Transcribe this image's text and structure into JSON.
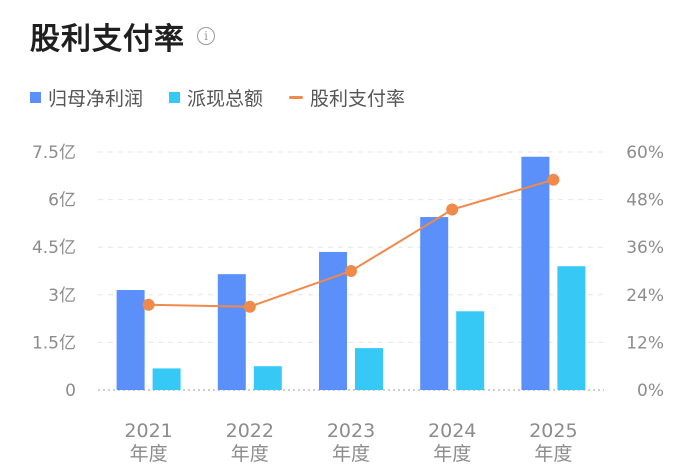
{
  "header": {
    "title": "股利支付率",
    "info_icon": "info-icon"
  },
  "legend": [
    {
      "label": "归母净利润",
      "color": "#5b8ff9",
      "kind": "box"
    },
    {
      "label": "派现总额",
      "color": "#36c9f6",
      "kind": "box"
    },
    {
      "label": "股利支付率",
      "color": "#f08a4b",
      "kind": "line"
    }
  ],
  "chart_data": {
    "type": "bar",
    "categories": [
      {
        "year": "2021",
        "sub": "年度"
      },
      {
        "year": "2022",
        "sub": "年度"
      },
      {
        "year": "2023",
        "sub": "年度"
      },
      {
        "year": "2024",
        "sub": "年度"
      },
      {
        "year": "2025",
        "sub": "年度"
      }
    ],
    "series": [
      {
        "name": "归母净利润",
        "type": "bar",
        "axis": "left",
        "unit": "亿",
        "color": "#5b8ff9",
        "values": [
          3.15,
          3.65,
          4.35,
          5.45,
          7.35
        ]
      },
      {
        "name": "派现总额",
        "type": "bar",
        "axis": "left",
        "unit": "亿",
        "color": "#36c9f6",
        "values": [
          0.68,
          0.75,
          1.32,
          2.48,
          3.9
        ]
      },
      {
        "name": "股利支付率",
        "type": "line",
        "axis": "right",
        "unit": "%",
        "color": "#f08a4b",
        "values": [
          21.5,
          21.0,
          30.0,
          45.5,
          53.0
        ]
      }
    ],
    "y_left": {
      "min": 0,
      "max": 7.5,
      "ticks": [
        0,
        1.5,
        3,
        4.5,
        6,
        7.5
      ],
      "tick_labels": [
        "0",
        "1.5亿",
        "3亿",
        "4.5亿",
        "6亿",
        "7.5亿"
      ]
    },
    "y_right": {
      "min": 0,
      "max": 60,
      "ticks": [
        0,
        12,
        24,
        36,
        48,
        60
      ],
      "tick_labels": [
        "0%",
        "12%",
        "24%",
        "36%",
        "48%",
        "60%"
      ]
    },
    "grid": true,
    "legend_position": "top-left"
  }
}
